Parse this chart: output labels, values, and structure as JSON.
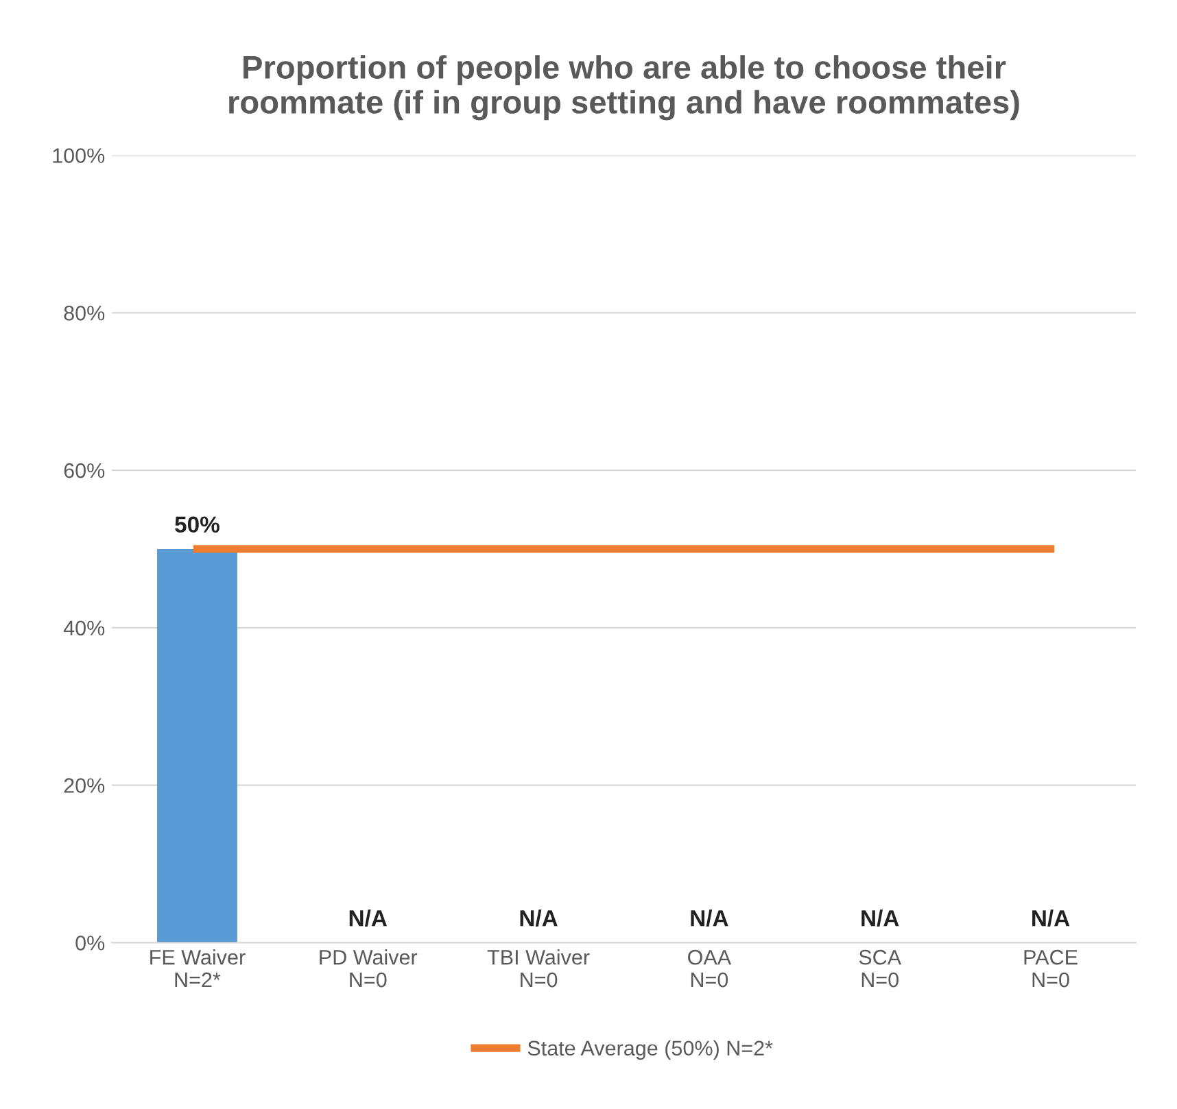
{
  "chart_data": {
    "type": "bar",
    "title": "Proportion of people who are able to choose their\nroommate (if in group setting and have roommates)",
    "categories": [
      "FE Waiver\nN=2*",
      "PD Waiver\nN=0",
      "TBI Waiver\nN=0",
      "OAA\nN=0",
      "SCA\nN=0",
      "PACE\nN=0"
    ],
    "series": [
      {
        "color": "#5b9bd5",
        "values": [
          50,
          null,
          null,
          null,
          null,
          null
        ],
        "value_labels": [
          "50%",
          "N/A",
          "N/A",
          "N/A",
          "N/A",
          "N/A"
        ]
      },
      {
        "type": "line",
        "name": "State Average (50%) N=2*",
        "color": "#ed7d31",
        "values": [
          50,
          50,
          50,
          50,
          50,
          50
        ]
      }
    ],
    "ylim": [
      0,
      100
    ],
    "yticks": [
      {
        "value": 0,
        "label": "0%"
      },
      {
        "value": 20,
        "label": "20%"
      },
      {
        "value": 40,
        "label": "40%"
      },
      {
        "value": 60,
        "label": "60%"
      },
      {
        "value": 80,
        "label": "80%"
      },
      {
        "value": 100,
        "label": "100%"
      }
    ],
    "grid": "y",
    "legend": "bottom",
    "marker": "none",
    "line_style": "solid"
  }
}
